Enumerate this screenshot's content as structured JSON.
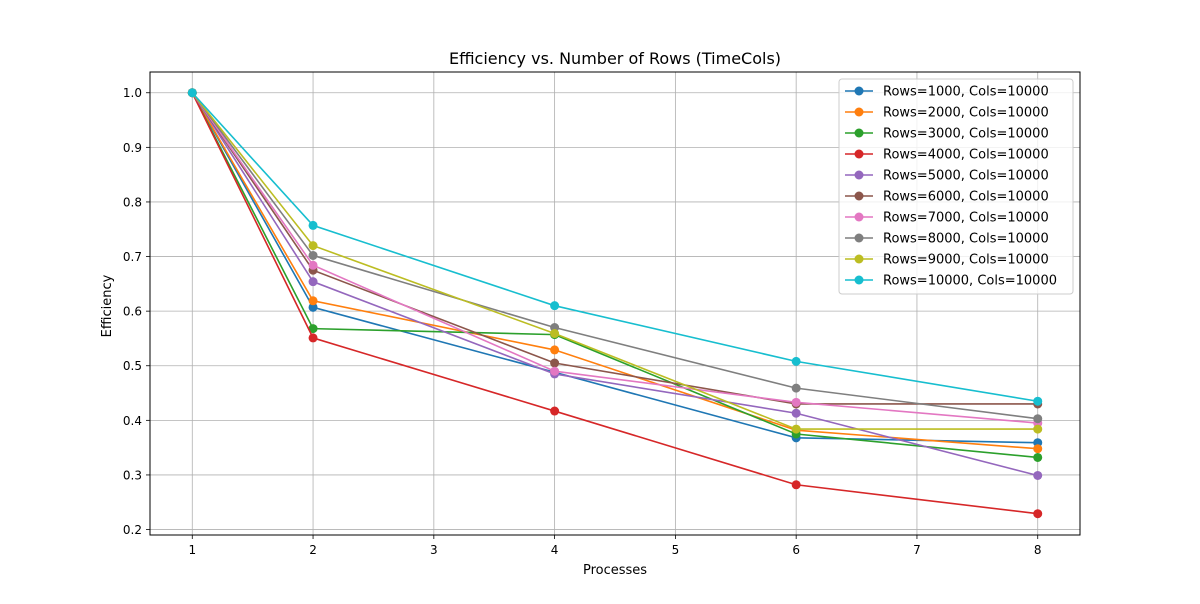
{
  "chart_data": {
    "type": "line",
    "title": "Efficiency vs. Number of Rows (TimeCols)",
    "xlabel": "Processes",
    "ylabel": "Efficiency",
    "xlim": [
      0.65,
      8.35
    ],
    "ylim": [
      0.19,
      1.038
    ],
    "xticks": [
      1,
      2,
      3,
      4,
      5,
      6,
      7,
      8
    ],
    "yticks": [
      0.2,
      0.3,
      0.4,
      0.5,
      0.6,
      0.7,
      0.8,
      0.9,
      1.0
    ],
    "xtick_labels": [
      "1",
      "2",
      "3",
      "4",
      "5",
      "6",
      "7",
      "8"
    ],
    "ytick_labels": [
      "0.2",
      "0.3",
      "0.4",
      "0.5",
      "0.6",
      "0.7",
      "0.8",
      "0.9",
      "1.0"
    ],
    "grid": true,
    "legend_position": "top-right",
    "x": [
      1,
      2,
      4,
      6,
      8
    ],
    "series": [
      {
        "name": "Rows=1000, Cols=10000",
        "color": "#1f77b4",
        "values": [
          1.0,
          0.607,
          0.488,
          0.368,
          0.359
        ]
      },
      {
        "name": "Rows=2000, Cols=10000",
        "color": "#ff7f0e",
        "values": [
          1.0,
          0.619,
          0.529,
          0.382,
          0.348
        ]
      },
      {
        "name": "Rows=3000, Cols=10000",
        "color": "#2ca02c",
        "values": [
          1.0,
          0.568,
          0.557,
          0.375,
          0.332
        ]
      },
      {
        "name": "Rows=4000, Cols=10000",
        "color": "#d62728",
        "values": [
          1.0,
          0.551,
          0.417,
          0.282,
          0.229
        ]
      },
      {
        "name": "Rows=5000, Cols=10000",
        "color": "#9467bd",
        "values": [
          1.0,
          0.654,
          0.485,
          0.413,
          0.299
        ]
      },
      {
        "name": "Rows=6000, Cols=10000",
        "color": "#8c564b",
        "values": [
          1.0,
          0.675,
          0.505,
          0.43,
          0.43
        ]
      },
      {
        "name": "Rows=7000, Cols=10000",
        "color": "#e377c2",
        "values": [
          1.0,
          0.684,
          0.49,
          0.433,
          0.395
        ]
      },
      {
        "name": "Rows=8000, Cols=10000",
        "color": "#7f7f7f",
        "values": [
          1.0,
          0.702,
          0.57,
          0.459,
          0.403
        ]
      },
      {
        "name": "Rows=9000, Cols=10000",
        "color": "#bcbd22",
        "values": [
          1.0,
          0.72,
          0.559,
          0.384,
          0.384
        ]
      },
      {
        "name": "Rows=10000, Cols=10000",
        "color": "#17becf",
        "values": [
          1.0,
          0.757,
          0.61,
          0.508,
          0.435
        ]
      }
    ]
  }
}
